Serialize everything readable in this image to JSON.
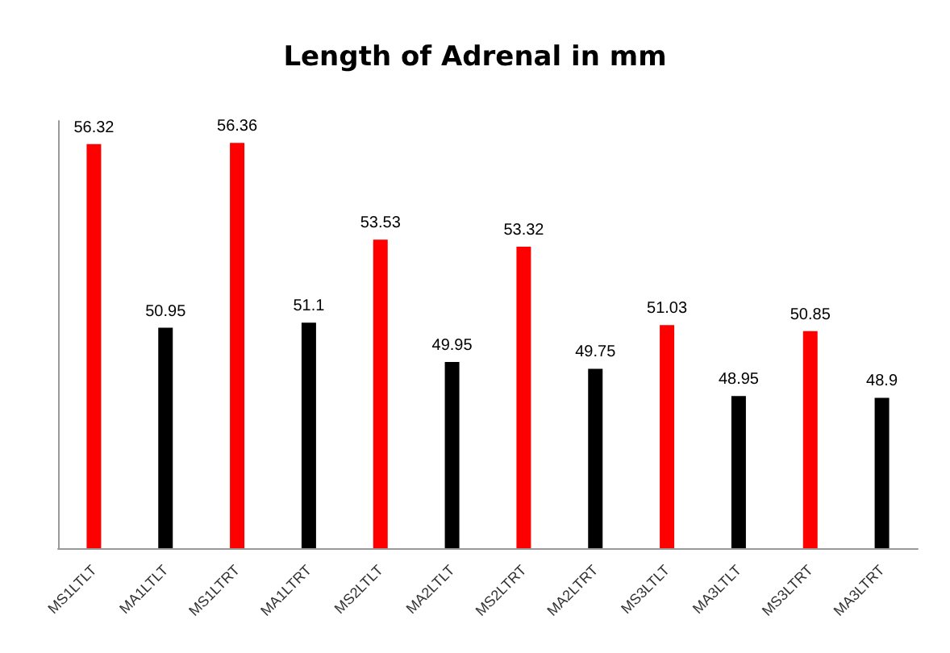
{
  "chart_data": {
    "type": "bar",
    "title": "Length of Adrenal in mm",
    "categories": [
      "MS1LTLT",
      "MA1LTLT",
      "MS1LTRT",
      "MA1LTRT",
      "MS2LTLT",
      "MA2LTLT",
      "MS2LTRT",
      "MA2LTRT",
      "MS3LTLT",
      "MA3LTLT",
      "MS3LTRT",
      "MA3LTRT"
    ],
    "values": [
      56.32,
      50.95,
      56.36,
      51.1,
      53.53,
      49.95,
      53.32,
      49.75,
      51.03,
      48.95,
      50.85,
      48.9
    ],
    "colors": [
      "#ff0000",
      "#000000",
      "#ff0000",
      "#000000",
      "#ff0000",
      "#000000",
      "#ff0000",
      "#000000",
      "#ff0000",
      "#000000",
      "#ff0000",
      "#000000"
    ],
    "ylim": [
      44.5,
      57
    ],
    "data_labels": true,
    "tick_labels": "x"
  }
}
